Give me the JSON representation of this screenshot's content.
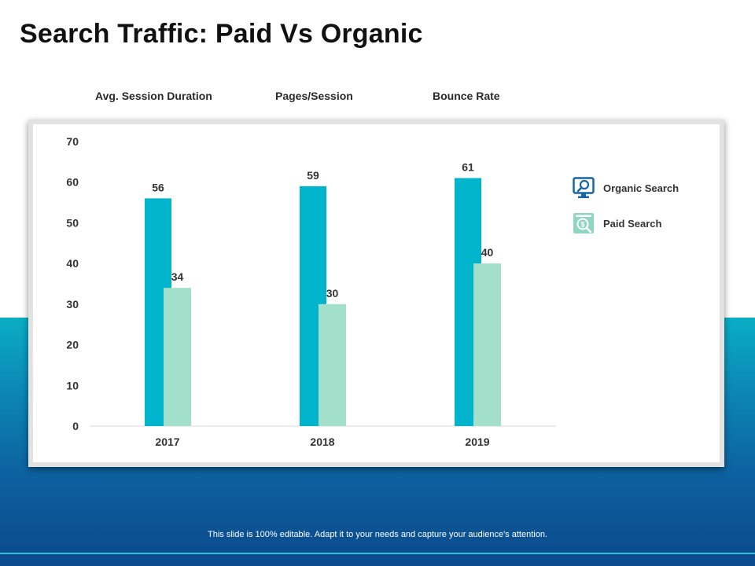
{
  "slide": {
    "title": "Search Traffic: Paid Vs Organic",
    "metrics": [
      "Avg. Session Duration",
      "Pages/Session",
      "Bounce Rate"
    ],
    "footer": "This slide is 100% editable. Adapt it to your needs and capture your audience's attention."
  },
  "colors": {
    "organic": "#00b4cc",
    "paid": "#a3e0cc",
    "band_top": "#0aaec4",
    "band_bottom": "#0b4a8c"
  },
  "chart_data": {
    "type": "bar",
    "title": "",
    "xlabel": "",
    "ylabel": "",
    "categories": [
      "2017",
      "2018",
      "2019"
    ],
    "series": [
      {
        "name": "Organic Search",
        "values": [
          56,
          59,
          61
        ]
      },
      {
        "name": "Paid Search",
        "values": [
          34,
          30,
          40
        ]
      }
    ],
    "ylim": [
      0,
      70
    ],
    "yticks": [
      0,
      10,
      20,
      30,
      40,
      50,
      60,
      70
    ],
    "grid": false,
    "legend": "right",
    "legend_icons": [
      "monitor-search-icon",
      "dollar-search-icon"
    ]
  }
}
